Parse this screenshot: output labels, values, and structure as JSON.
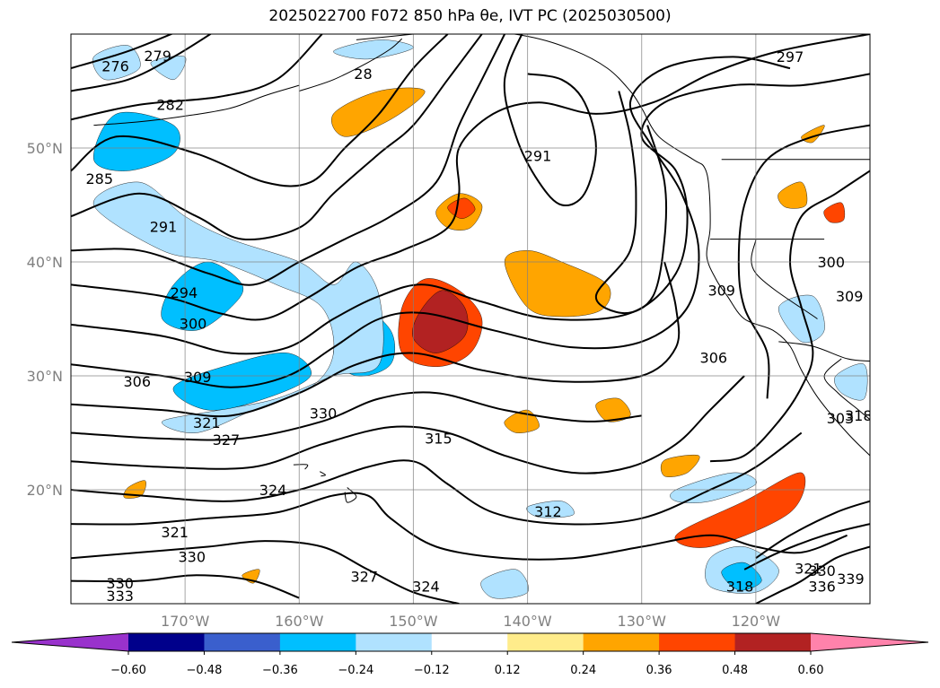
{
  "chart_data": {
    "type": "heatmap",
    "title": "2025022700 F072 850 hPa θe, IVT PC (2025030500)",
    "xlabel": "",
    "ylabel": "",
    "x_ticks": [
      "170°W",
      "160°W",
      "150°W",
      "140°W",
      "130°W",
      "120°W"
    ],
    "y_ticks": [
      "50°N",
      "40°N",
      "30°N",
      "20°N"
    ],
    "xlim": [
      -180,
      -110
    ],
    "ylim": [
      10,
      60
    ],
    "grid": true,
    "colorbar": {
      "orientation": "horizontal",
      "extend": "both",
      "levels": [
        "-0.60",
        "-0.48",
        "-0.36",
        "-0.24",
        "-0.12",
        "0.12",
        "0.24",
        "0.36",
        "0.48",
        "0.60"
      ],
      "colors": [
        "#9932cc",
        "#00008b",
        "#3a5fcd",
        "#00bfff",
        "#b0e2ff",
        "#ffffff",
        "#ffec8b",
        "#ffa500",
        "#ff4500",
        "#b22222",
        "#ff82ab"
      ]
    },
    "contour_labels": [
      {
        "text": "276",
        "lon": -176.1,
        "lat": 57.1
      },
      {
        "text": "279",
        "lon": -172.4,
        "lat": 58.0
      },
      {
        "text": "282",
        "lon": -171.3,
        "lat": 53.7
      },
      {
        "text": "285",
        "lon": -177.5,
        "lat": 47.2
      },
      {
        "text": "291",
        "lon": -171.9,
        "lat": 43.0
      },
      {
        "text": "294",
        "lon": -170.1,
        "lat": 37.2
      },
      {
        "text": "300",
        "lon": -169.3,
        "lat": 34.5
      },
      {
        "text": "306",
        "lon": -174.2,
        "lat": 29.4
      },
      {
        "text": "309",
        "lon": -168.9,
        "lat": 29.8
      },
      {
        "text": "321",
        "lon": -168.1,
        "lat": 25.8
      },
      {
        "text": "327",
        "lon": -166.4,
        "lat": 24.3
      },
      {
        "text": "330",
        "lon": -157.9,
        "lat": 26.6
      },
      {
        "text": "315",
        "lon": -147.8,
        "lat": 24.4
      },
      {
        "text": "324",
        "lon": -162.3,
        "lat": 19.9
      },
      {
        "text": "321",
        "lon": -170.9,
        "lat": 16.2
      },
      {
        "text": "330",
        "lon": -169.4,
        "lat": 14.0
      },
      {
        "text": "330",
        "lon": -175.7,
        "lat": 11.7
      },
      {
        "text": "333",
        "lon": -175.7,
        "lat": 10.6
      },
      {
        "text": "327",
        "lon": -154.3,
        "lat": 12.3
      },
      {
        "text": "324",
        "lon": -148.9,
        "lat": 11.4
      },
      {
        "text": "312",
        "lon": -138.2,
        "lat": 18.0
      },
      {
        "text": "318",
        "lon": -121.4,
        "lat": 11.4
      },
      {
        "text": "291",
        "lon": -139.1,
        "lat": 49.2
      },
      {
        "text": "28",
        "lon": -154.4,
        "lat": 56.4
      },
      {
        "text": "297",
        "lon": -117.0,
        "lat": 57.9
      },
      {
        "text": "306",
        "lon": -123.7,
        "lat": 31.5
      },
      {
        "text": "303",
        "lon": -112.6,
        "lat": 26.2
      },
      {
        "text": "309",
        "lon": -123.0,
        "lat": 37.4
      },
      {
        "text": "300",
        "lon": -113.4,
        "lat": 39.9
      },
      {
        "text": "309",
        "lon": -111.8,
        "lat": 36.9
      },
      {
        "text": "318",
        "lon": -111.0,
        "lat": 26.4
      },
      {
        "text": "321",
        "lon": -115.4,
        "lat": 13.0
      },
      {
        "text": "330",
        "lon": -114.2,
        "lat": 12.8
      },
      {
        "text": "336",
        "lon": -114.2,
        "lat": 11.4
      },
      {
        "text": "339",
        "lon": -111.7,
        "lat": 12.1
      }
    ],
    "shaded_regions": [
      {
        "level": 0.36,
        "poly": [
          [
            -151,
            36
          ],
          [
            -149,
            38.5
          ],
          [
            -146,
            37.5
          ],
          [
            -144,
            35
          ],
          [
            -145,
            32
          ],
          [
            -148,
            30.8
          ],
          [
            -151,
            32
          ]
        ]
      },
      {
        "level": 0.48,
        "poly": [
          [
            -149.5,
            35.5
          ],
          [
            -147.5,
            37.5
          ],
          [
            -145.5,
            36
          ],
          [
            -145.5,
            33.5
          ],
          [
            -148,
            32
          ],
          [
            -150,
            33.3
          ]
        ]
      },
      {
        "level": -0.36,
        "poly": [
          [
            -157,
            32
          ],
          [
            -155,
            36
          ],
          [
            -152,
            34
          ],
          [
            -152,
            31
          ],
          [
            -155,
            30
          ]
        ]
      },
      {
        "level": -0.48,
        "poly": [
          [
            -156,
            32.5
          ],
          [
            -154.5,
            35
          ],
          [
            -153,
            33.5
          ],
          [
            -153.5,
            31.5
          ],
          [
            -155.5,
            31.2
          ]
        ]
      },
      {
        "level": -0.36,
        "poly": [
          [
            -178,
            49
          ],
          [
            -176,
            53
          ],
          [
            -171,
            52
          ],
          [
            -171,
            49.5
          ],
          [
            -175,
            48
          ]
        ]
      },
      {
        "level": 0.36,
        "poly": [
          [
            -140.8,
            38
          ],
          [
            -137,
            39.5
          ],
          [
            -134.5,
            37.5
          ],
          [
            -135.5,
            35.5
          ],
          [
            -139,
            36.2
          ]
        ]
      },
      {
        "level": 0.24,
        "poly": [
          [
            -157,
            53
          ],
          [
            -153,
            55
          ],
          [
            -149,
            55
          ],
          [
            -152,
            52.5
          ],
          [
            -156,
            51
          ]
        ]
      },
      {
        "level": 0.36,
        "poly": [
          [
            -127,
            16
          ],
          [
            -121,
            19
          ],
          [
            -116,
            21.5
          ],
          [
            -117,
            18
          ],
          [
            -124,
            15
          ]
        ]
      }
    ]
  }
}
